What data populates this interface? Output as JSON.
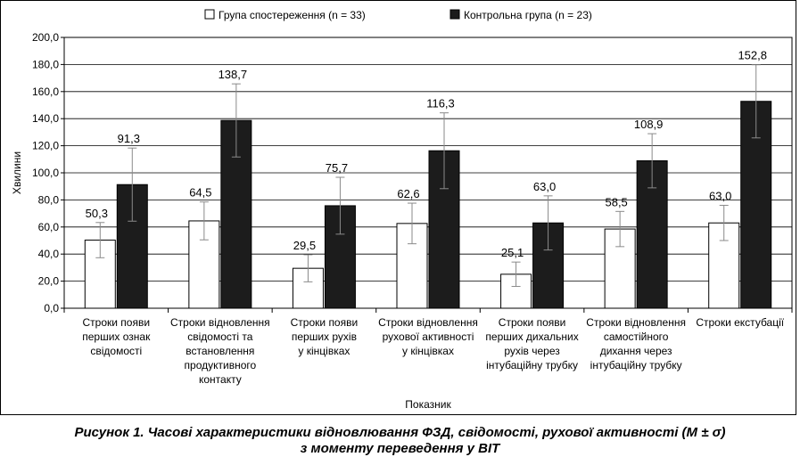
{
  "chart_data": {
    "type": "bar",
    "title": "",
    "xlabel": "Показник",
    "ylabel": "Хвилини",
    "ylim": [
      0,
      200
    ],
    "yticks": [
      "0,0",
      "20,0",
      "40,0",
      "60,0",
      "80,0",
      "100,0",
      "120,0",
      "140,0",
      "160,0",
      "180,0",
      "200,0"
    ],
    "grid": true,
    "legend_position": "top",
    "error_bars": true,
    "categories": [
      [
        "Строки появи",
        "перших ознак",
        "свідомості"
      ],
      [
        "Строки відновлення",
        "свідомості та",
        "встановлення",
        "продуктивного",
        "контакту"
      ],
      [
        "Строки появи",
        "перших рухів",
        "у кінцівках"
      ],
      [
        "Строки відновлення",
        "рухової активності",
        "у кінцівках"
      ],
      [
        "Строки появи",
        "перших дихальних",
        "рухів через",
        "інтубаційну трубку"
      ],
      [
        "Строки відновлення",
        "самостійного",
        "дихання через",
        "інтубаційну трубку"
      ],
      [
        "Строки екстубації"
      ]
    ],
    "series": [
      {
        "name": "Група спостереження (n = 33)",
        "color": "#ffffff",
        "values": [
          50.3,
          64.5,
          29.5,
          62.6,
          25.1,
          58.5,
          63.0
        ],
        "labels": [
          "50,3",
          "64,5",
          "29,5",
          "62,6",
          "25,1",
          "58,5",
          "63,0"
        ],
        "sd": [
          13,
          14,
          10,
          15,
          9,
          13,
          13
        ]
      },
      {
        "name": "Контрольна група (n = 23)",
        "color": "#1c1c1c",
        "values": [
          91.3,
          138.7,
          75.7,
          116.3,
          63.0,
          108.9,
          152.8
        ],
        "labels": [
          "91,3",
          "138,7",
          "75,7",
          "116,3",
          "63,0",
          "108,9",
          "152,8"
        ],
        "sd": [
          27,
          27,
          21,
          28,
          20,
          20,
          27
        ]
      }
    ]
  },
  "caption": {
    "line1": "Рисунок 1. Часові характеристики відновлювання ФЗД, свідомості, рухової активності (M ± σ)",
    "line2": "з моменту переведення у ВІТ"
  }
}
